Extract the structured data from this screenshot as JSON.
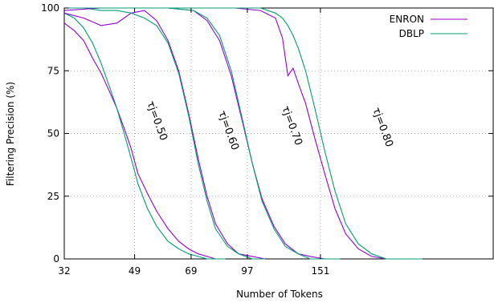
{
  "chart_data": {
    "type": "line",
    "title": "",
    "xlabel": "Number of Tokens",
    "ylabel": "Filtering Precision (%)",
    "x_ticks": [
      32,
      49,
      69,
      97,
      151
    ],
    "y_ticks": [
      0,
      25,
      50,
      75,
      100
    ],
    "xlim": [
      32,
      430
    ],
    "ylim": [
      0,
      100
    ],
    "x_scale": "log",
    "grid": "dotted",
    "legend_position": "top-right",
    "annotations": [
      "τj=0.50",
      "τj=0.60",
      "τj=0.70",
      "τj=0.80"
    ],
    "series_colors": {
      "ENRON": "#9400d3",
      "DBLP": "#009e73"
    },
    "series": [
      {
        "name": "ENRON",
        "group": "τj=0.50",
        "x": [
          32,
          34,
          36,
          38,
          40,
          42,
          44,
          46,
          48,
          50,
          53,
          56,
          60,
          64,
          68,
          72,
          76,
          80,
          85
        ],
        "y": [
          94,
          91,
          87,
          80,
          74,
          67,
          60,
          52,
          44,
          34,
          26,
          19,
          12,
          7,
          4,
          2,
          1,
          0,
          0
        ]
      },
      {
        "name": "DBLP",
        "group": "τj=0.50",
        "x": [
          32,
          34,
          36,
          38,
          40,
          42,
          44,
          46,
          48,
          50,
          53,
          56,
          60,
          64,
          68,
          72,
          76,
          80,
          85
        ],
        "y": [
          98,
          96,
          92,
          86,
          78,
          69,
          60,
          50,
          40,
          30,
          20,
          13,
          7,
          4,
          2,
          1,
          0,
          0,
          0
        ]
      },
      {
        "name": "ENRON",
        "group": "τj=0.60",
        "x": [
          32,
          36,
          40,
          44,
          48,
          52,
          56,
          60,
          64,
          68,
          72,
          76,
          80,
          86,
          92,
          100,
          108
        ],
        "y": [
          98,
          96,
          93,
          94,
          98,
          99,
          95,
          87,
          75,
          58,
          40,
          25,
          14,
          6,
          2,
          1,
          0
        ]
      },
      {
        "name": "DBLP",
        "group": "τj=0.60",
        "x": [
          32,
          36,
          40,
          44,
          48,
          52,
          56,
          60,
          64,
          68,
          72,
          76,
          80,
          86,
          92,
          100,
          108
        ],
        "y": [
          100,
          100,
          99,
          99,
          98,
          96,
          93,
          86,
          74,
          57,
          38,
          23,
          12,
          5,
          2,
          0,
          0
        ]
      },
      {
        "name": "ENRON",
        "group": "τj=0.70",
        "x": [
          32,
          40,
          50,
          60,
          70,
          76,
          82,
          88,
          94,
          100,
          106,
          114,
          122,
          132,
          142,
          155,
          170
        ],
        "y": [
          99,
          100,
          100,
          100,
          99,
          95,
          87,
          73,
          55,
          38,
          24,
          13,
          6,
          2,
          1,
          0,
          0
        ]
      },
      {
        "name": "DBLP",
        "group": "τj=0.70",
        "x": [
          32,
          40,
          50,
          60,
          70,
          76,
          82,
          88,
          94,
          100,
          106,
          114,
          122,
          132,
          142,
          155,
          170
        ],
        "y": [
          100,
          100,
          100,
          100,
          99,
          96,
          89,
          75,
          56,
          38,
          23,
          12,
          5,
          2,
          0,
          0,
          0
        ]
      },
      {
        "name": "ENRON",
        "group": "τj=0.80",
        "x": [
          32,
          60,
          90,
          105,
          115,
          120,
          124,
          128,
          132,
          138,
          146,
          155,
          165,
          176,
          190,
          206,
          225,
          250,
          280
        ],
        "y": [
          100,
          100,
          100,
          99,
          96,
          88,
          73,
          76,
          70,
          62,
          48,
          34,
          20,
          10,
          4,
          1,
          0,
          0,
          0
        ]
      },
      {
        "name": "DBLP",
        "group": "τj=0.80",
        "x": [
          32,
          60,
          90,
          105,
          115,
          120,
          124,
          128,
          132,
          138,
          146,
          155,
          165,
          176,
          190,
          206,
          225,
          250,
          280
        ],
        "y": [
          100,
          100,
          100,
          100,
          98,
          96,
          93,
          89,
          84,
          75,
          60,
          43,
          27,
          14,
          6,
          2,
          0,
          0,
          0
        ]
      }
    ],
    "legend": [
      "ENRON",
      "DBLP"
    ]
  }
}
